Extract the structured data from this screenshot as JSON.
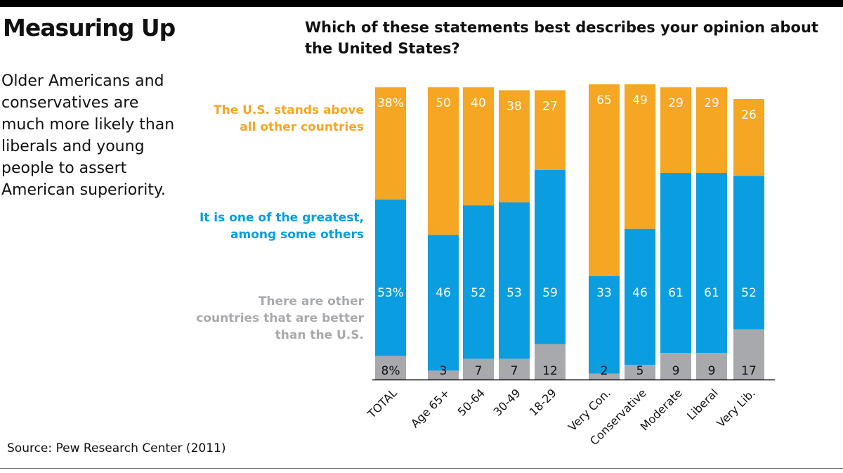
{
  "headline": "Measuring Up",
  "summary": "Older Americans and conservatives are much more likely than liberals and young people to assert American superiority.",
  "source": "Source: Pew Research Center (2011)",
  "colors": {
    "top": "#F5A623",
    "middle": "#0A9DE0",
    "bottom": "#A7A9AC"
  },
  "chart_data": {
    "type": "bar",
    "stacked": true,
    "title": "Which of these statements best describes your opinion about the United States?",
    "categories": [
      "TOTAL",
      "Age 65+",
      "50-64",
      "30-49",
      "18-29",
      "Very Con.",
      "Conservative",
      "Moderate",
      "Liberal",
      "Very Lib."
    ],
    "series": [
      {
        "name": "There are other countries that are better than the U.S.",
        "values": [
          8,
          3,
          7,
          7,
          12,
          2,
          5,
          9,
          9,
          17
        ],
        "labels": [
          "8%",
          "3",
          "7",
          "7",
          "12",
          "2",
          "5",
          "9",
          "9",
          "17"
        ]
      },
      {
        "name": "It is one of the greatest, among some others",
        "values": [
          53,
          46,
          52,
          53,
          59,
          33,
          46,
          61,
          61,
          52
        ],
        "labels": [
          "53%",
          "46",
          "52",
          "53",
          "59",
          "33",
          "46",
          "61",
          "61",
          "52"
        ]
      },
      {
        "name": "The U.S. stands above all other countries",
        "values": [
          38,
          50,
          40,
          38,
          27,
          65,
          49,
          29,
          29,
          26
        ],
        "labels": [
          "38%",
          "50",
          "40",
          "38",
          "27",
          "65",
          "49",
          "29",
          "29",
          "26"
        ]
      }
    ]
  }
}
